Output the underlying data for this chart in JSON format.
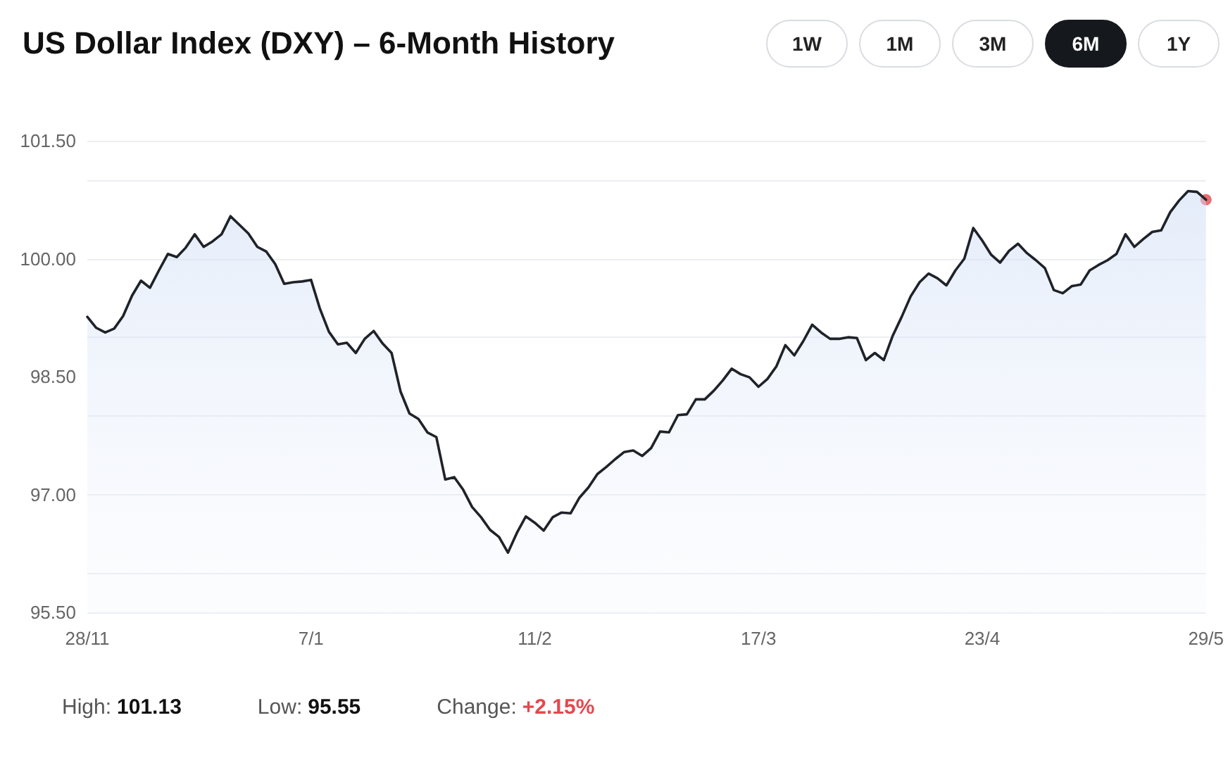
{
  "chart_data": {
    "type": "area",
    "title": "US Dollar Index (DXY) – 6-Month History",
    "categories": [
      "28/11",
      null,
      null,
      null,
      null,
      null,
      null,
      null,
      null,
      null,
      null,
      null,
      null,
      null,
      null,
      null,
      null,
      null,
      null,
      null,
      null,
      null,
      null,
      null,
      null,
      "7/1",
      null,
      null,
      null,
      null,
      null,
      null,
      null,
      null,
      null,
      null,
      null,
      null,
      null,
      null,
      null,
      null,
      null,
      null,
      null,
      null,
      null,
      null,
      null,
      null,
      "11/2",
      null,
      null,
      null,
      null,
      null,
      null,
      null,
      null,
      null,
      null,
      null,
      null,
      null,
      null,
      null,
      null,
      null,
      null,
      null,
      null,
      null,
      null,
      null,
      null,
      "17/3",
      null,
      null,
      null,
      null,
      null,
      null,
      null,
      null,
      null,
      null,
      null,
      null,
      null,
      null,
      null,
      null,
      null,
      null,
      null,
      null,
      null,
      null,
      null,
      null,
      "23/4",
      null,
      null,
      null,
      null,
      null,
      null,
      null,
      null,
      null,
      null,
      null,
      null,
      null,
      null,
      null,
      null,
      null,
      null,
      null,
      null,
      null,
      null,
      null,
      null,
      "29/5"
    ],
    "series": [
      {
        "color": "#1f2329",
        "marker": "none",
        "values": [
          99.26,
          99.12,
          99.06,
          99.11,
          99.27,
          99.53,
          99.72,
          99.63,
          99.85,
          100.06,
          100.02,
          100.14,
          100.31,
          100.15,
          100.22,
          100.31,
          100.54,
          100.43,
          100.32,
          100.15,
          100.09,
          99.93,
          99.68,
          99.7,
          99.71,
          99.73,
          99.36,
          99.07,
          98.91,
          98.93,
          98.8,
          98.98,
          99.08,
          98.92,
          98.8,
          98.31,
          98.03,
          97.96,
          97.79,
          97.73,
          97.19,
          97.22,
          97.06,
          96.84,
          96.71,
          96.55,
          96.46,
          96.26,
          96.51,
          96.72,
          96.64,
          96.54,
          96.71,
          96.77,
          96.76,
          96.96,
          97.09,
          97.26,
          97.35,
          97.45,
          97.54,
          97.56,
          97.49,
          97.59,
          97.8,
          97.79,
          98.01,
          98.02,
          98.21,
          98.21,
          98.32,
          98.45,
          98.6,
          98.53,
          98.49,
          98.37,
          98.47,
          98.63,
          98.9,
          98.77,
          98.95,
          99.16,
          99.06,
          98.98,
          98.98,
          99.0,
          98.99,
          98.71,
          98.8,
          98.71,
          99.02,
          99.26,
          99.52,
          99.7,
          99.81,
          99.75,
          99.66,
          99.85,
          100.0,
          100.39,
          100.23,
          100.05,
          99.95,
          100.1,
          100.19,
          100.07,
          99.98,
          99.88,
          99.6,
          99.56,
          99.65,
          99.67,
          99.85,
          99.92,
          99.98,
          100.06,
          100.31,
          100.15,
          100.25,
          100.34,
          100.36,
          100.59,
          100.74,
          100.86,
          100.85,
          100.75
        ]
      },
      {
        "type": "scatter",
        "color": "#e5484d",
        "marker": "circle",
        "x": [
          "29/5"
        ],
        "values": [
          100.75
        ]
      }
    ],
    "ylim": [
      95.5,
      101.5
    ],
    "yticks": [
      {
        "value": 95.5,
        "label": "95.50"
      },
      {
        "value": 97,
        "label": "97.00"
      },
      {
        "value": 98.5,
        "label": "98.50"
      },
      {
        "value": 100,
        "label": "100.00"
      },
      {
        "value": 101.5,
        "label": "101.50"
      }
    ],
    "grid": "y",
    "line_style": "solid",
    "annotations": [
      "1W",
      "1M",
      "3M",
      "6M",
      "1Y",
      "High: 101.13",
      "Low: 95.55",
      "Change: +2.15%"
    ]
  }
}
